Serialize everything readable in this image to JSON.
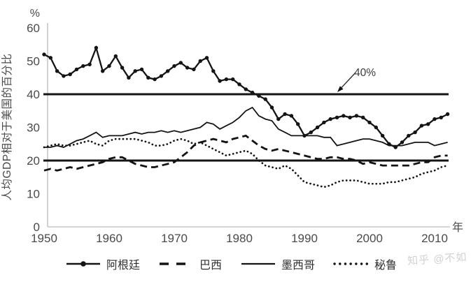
{
  "watermark": {
    "text": "知乎 @不如"
  },
  "chart_data": {
    "type": "line",
    "title": "",
    "ylabel": "人均GDP相对于美国的百分比",
    "y_unit_label": "%",
    "xlabel": "年",
    "ylim": [
      0,
      60
    ],
    "yticks": [
      0,
      10,
      20,
      30,
      40,
      50,
      60
    ],
    "xticks": [
      1950,
      1960,
      1970,
      1980,
      1990,
      2000,
      2010
    ],
    "x_years": {
      "start": 1950,
      "end": 2012,
      "step": 1
    },
    "grid": false,
    "legend_position": "bottom",
    "line_color": "#141414",
    "reference_lines": [
      {
        "value": 40
      },
      {
        "value": 20
      }
    ],
    "annotation": {
      "text": "40%",
      "points_to_value": 40
    },
    "series": [
      {
        "id": "argentina",
        "name": "阿根廷",
        "style": "solid-markers",
        "values": [
          52,
          51,
          47,
          45.5,
          46,
          47.5,
          48.5,
          49,
          54,
          47,
          48.5,
          51.5,
          48,
          45,
          47,
          47.5,
          45,
          44.5,
          45.5,
          47,
          48.5,
          49.5,
          48,
          47.5,
          50,
          51,
          47,
          44,
          44.5,
          44.5,
          43,
          41.5,
          40.5,
          39.5,
          38.5,
          36,
          32.5,
          34,
          33.5,
          31,
          27.5,
          28.5,
          30,
          31.5,
          32.5,
          33,
          33.5,
          33,
          33.5,
          33,
          31.5,
          30,
          27.5,
          25,
          24,
          25.5,
          27.5,
          28.5,
          30.5,
          31,
          32.5,
          33,
          34
        ]
      },
      {
        "id": "brazil",
        "name": "巴西",
        "style": "dashed",
        "values": [
          17,
          17.5,
          17,
          17.5,
          18,
          17.5,
          18,
          18.5,
          19,
          19.5,
          20.5,
          21,
          21,
          20,
          19,
          18.5,
          18,
          18,
          18.5,
          19,
          19.5,
          21,
          22.5,
          24.5,
          25.5,
          26,
          26.5,
          26,
          25.5,
          26.5,
          27,
          27.5,
          26,
          24.5,
          23.5,
          23,
          23.5,
          23,
          22.5,
          22,
          21.5,
          21,
          20.5,
          20.5,
          21,
          21,
          20.5,
          20.5,
          20,
          19,
          19.5,
          19,
          18.5,
          18.5,
          18.5,
          18.5,
          18.5,
          19,
          19.5,
          19.5,
          21,
          21.5,
          21.5
        ]
      },
      {
        "id": "mexico",
        "name": "墨西哥",
        "style": "solid",
        "values": [
          24,
          24,
          24.5,
          24,
          25,
          26,
          26.5,
          27.5,
          28.5,
          27,
          27.5,
          27.5,
          27.5,
          28,
          28.5,
          28,
          28.5,
          28.5,
          29,
          28.5,
          29,
          28.5,
          29,
          29.5,
          30,
          31.5,
          31,
          29.5,
          30.5,
          31.5,
          33,
          35,
          36,
          33.5,
          32.5,
          32,
          29.5,
          28.5,
          27.5,
          27.5,
          27.5,
          27.5,
          27.5,
          27,
          27,
          24.5,
          25,
          25.5,
          26,
          26.5,
          26.5,
          26,
          25.5,
          24.5,
          24.5,
          24.5,
          25,
          25.5,
          25.5,
          25.5,
          24.5,
          25,
          25.5
        ]
      },
      {
        "id": "peru",
        "name": "秘鲁",
        "style": "dotted",
        "values": [
          24,
          24.5,
          25,
          24.5,
          24.5,
          25,
          25.5,
          26,
          25,
          24.5,
          26,
          26.5,
          26.5,
          26.5,
          26.5,
          26,
          25.5,
          24.5,
          24.5,
          25,
          26,
          26.5,
          26,
          25,
          25.5,
          24.5,
          23.5,
          22.5,
          21.5,
          22,
          22.5,
          23,
          22,
          20,
          18.5,
          18,
          17.5,
          18.5,
          17.5,
          15.5,
          13.5,
          13,
          12.5,
          12,
          12.5,
          13.5,
          14,
          14,
          14,
          13.5,
          13,
          13,
          13,
          13.5,
          13.5,
          14,
          14.5,
          15,
          16,
          16.5,
          17,
          18,
          18.5
        ]
      }
    ]
  }
}
